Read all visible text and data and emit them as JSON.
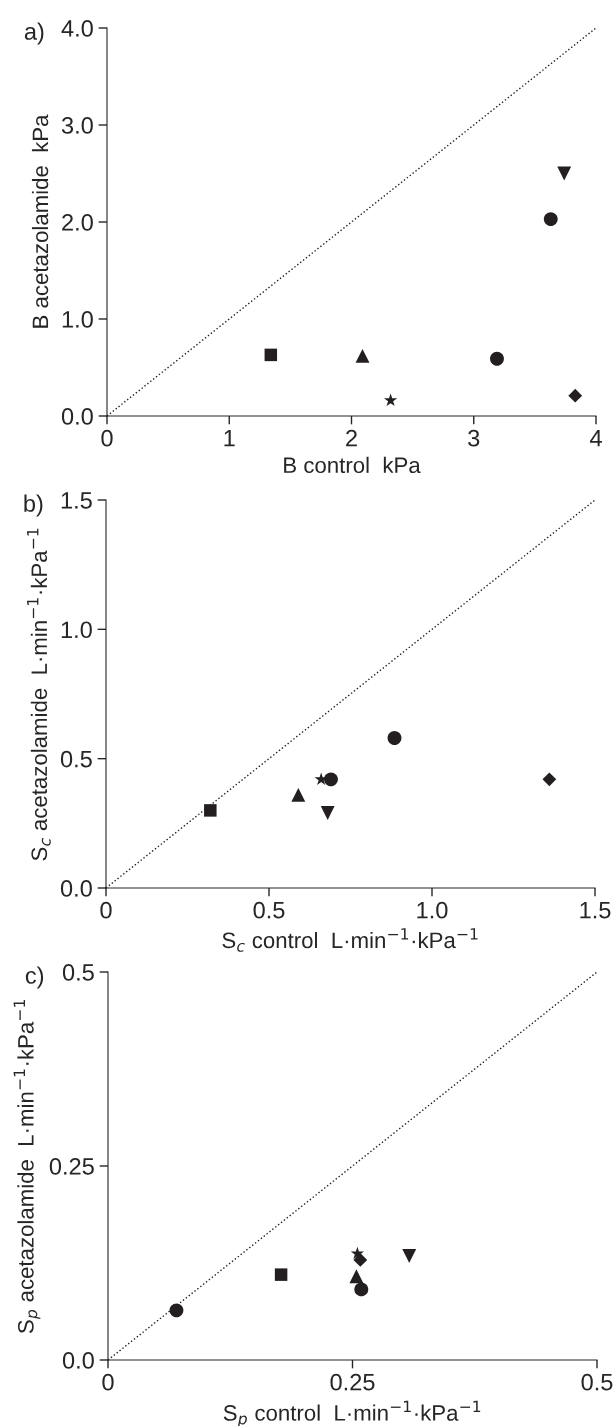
{
  "chart_data": [
    {
      "type": "scatter",
      "title": "a)",
      "xlabel": "B control  kPa",
      "ylabel": "B acetazolamide  kPa",
      "xlim": [
        0,
        4
      ],
      "ylim": [
        0,
        4
      ],
      "xticks": [
        0,
        1,
        2,
        3,
        4
      ],
      "yticks": [
        {
          "value": 0,
          "label": "0.0"
        },
        {
          "value": 1,
          "label": "1.0"
        },
        {
          "value": 2,
          "label": "2.0"
        },
        {
          "value": 3,
          "label": "3.0"
        },
        {
          "value": 4,
          "label": "4.0"
        }
      ],
      "series": [
        {
          "color": "#231f20",
          "marker": "square",
          "x": [
            1.34
          ],
          "values": [
            0.63
          ]
        },
        {
          "color": "#231f20",
          "marker": "triangle",
          "x": [
            2.09
          ],
          "values": [
            0.62
          ]
        },
        {
          "color": "#231f20",
          "marker": "star",
          "x": [
            2.32
          ],
          "values": [
            0.16
          ]
        },
        {
          "color": "#231f20",
          "marker": "circle",
          "x": [
            3.19
          ],
          "values": [
            0.59
          ]
        },
        {
          "color": "#231f20",
          "marker": "circle",
          "x": [
            3.63
          ],
          "values": [
            2.03
          ]
        },
        {
          "color": "#231f20",
          "marker": "triangle-down",
          "x": [
            3.74
          ],
          "values": [
            2.5
          ]
        },
        {
          "color": "#231f20",
          "marker": "diamond",
          "x": [
            3.83
          ],
          "values": [
            0.21
          ]
        },
        {
          "type": "line",
          "color": "#231f20",
          "line_style": "dotted",
          "marker": "none",
          "x": [
            0,
            4
          ],
          "values": [
            0,
            4
          ]
        }
      ]
    },
    {
      "type": "scatter",
      "title": "b)",
      "xlabel": "S$_{c}$ control  L·min$^{−1}$·kPa$^{−1}$",
      "ylabel": "S$_{c}$ acetazolamide  L·min$^{−1}$·kPa$^{−1}$",
      "xlim": [
        0,
        1.5
      ],
      "ylim": [
        0,
        1.5
      ],
      "xticks": [
        0,
        0.5,
        {
          "value": 1,
          "label": "1.0"
        },
        1.5
      ],
      "yticks": [
        {
          "value": 0,
          "label": "0.0"
        },
        0.5,
        {
          "value": 1,
          "label": "1.0"
        },
        1.5
      ],
      "series": [
        {
          "color": "#231f20",
          "marker": "square",
          "x": [
            0.32
          ],
          "values": [
            0.3
          ]
        },
        {
          "color": "#231f20",
          "marker": "triangle",
          "x": [
            0.59
          ],
          "values": [
            0.36
          ]
        },
        {
          "color": "#231f20",
          "marker": "star",
          "x": [
            0.66
          ],
          "values": [
            0.42
          ]
        },
        {
          "color": "#231f20",
          "marker": "circle",
          "x": [
            0.885
          ],
          "values": [
            0.58
          ]
        },
        {
          "color": "#231f20",
          "marker": "circle",
          "x": [
            0.69
          ],
          "values": [
            0.42
          ]
        },
        {
          "color": "#231f20",
          "marker": "triangle-down",
          "x": [
            0.68
          ],
          "values": [
            0.29
          ]
        },
        {
          "color": "#231f20",
          "marker": "diamond",
          "x": [
            1.36
          ],
          "values": [
            0.42
          ]
        },
        {
          "type": "line",
          "color": "#231f20",
          "line_style": "dotted",
          "marker": "none",
          "x": [
            0,
            1.5
          ],
          "values": [
            0,
            1.5
          ]
        }
      ]
    },
    {
      "type": "scatter",
      "title": "c)",
      "xlabel": "S$_{p}$ control  L·min$^{−1}$·kPa$^{−1}$",
      "ylabel": "S$_{p}$ acetazolamide  L·min$^{−1}$·kPa$^{−1}$",
      "xlim": [
        0,
        0.5
      ],
      "ylim": [
        0,
        0.5
      ],
      "xticks": [
        0,
        0.25,
        0.5
      ],
      "yticks": [
        {
          "value": 0,
          "label": "0.0"
        },
        0.25,
        0.5
      ],
      "series": [
        {
          "color": "#231f20",
          "marker": "square",
          "x": [
            0.177
          ],
          "values": [
            0.11
          ]
        },
        {
          "color": "#231f20",
          "marker": "triangle",
          "x": [
            0.254
          ],
          "values": [
            0.108
          ]
        },
        {
          "color": "#231f20",
          "marker": "star",
          "x": [
            0.255
          ],
          "values": [
            0.137
          ]
        },
        {
          "color": "#231f20",
          "marker": "circle",
          "x": [
            0.259
          ],
          "values": [
            0.091
          ]
        },
        {
          "color": "#231f20",
          "marker": "circle",
          "x": [
            0.07
          ],
          "values": [
            0.064
          ]
        },
        {
          "color": "#231f20",
          "marker": "triangle-down",
          "x": [
            0.308
          ],
          "values": [
            0.134
          ]
        },
        {
          "color": "#231f20",
          "marker": "diamond",
          "x": [
            0.258
          ],
          "values": [
            0.129
          ]
        },
        {
          "type": "line",
          "color": "#231f20",
          "line_style": "dotted",
          "marker": "none",
          "x": [
            0,
            0.5
          ],
          "values": [
            0,
            0.5
          ]
        }
      ]
    }
  ]
}
